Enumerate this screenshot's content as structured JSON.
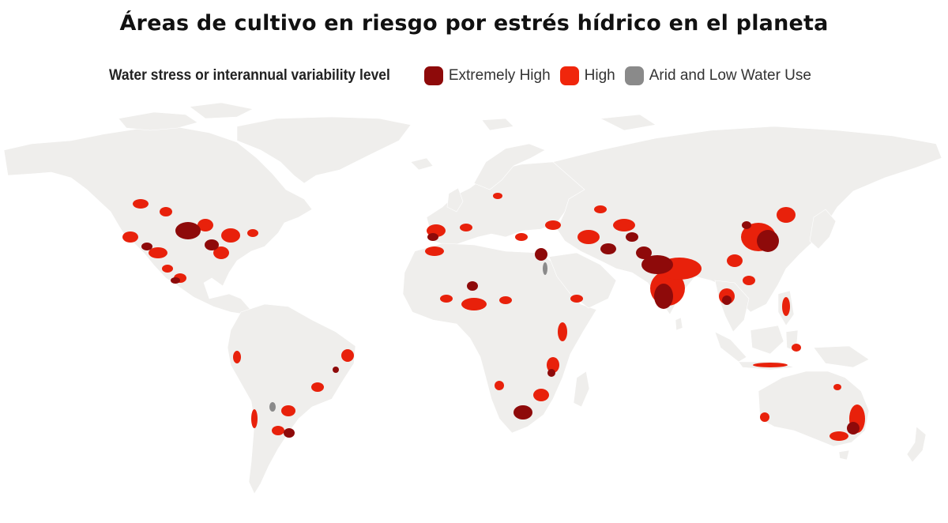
{
  "title": "Áreas de cultivo en riesgo por estrés hídrico en el planeta",
  "legend": {
    "title": "Water stress or interannual variability level",
    "items": [
      {
        "label": "Extremely High",
        "color": "#8e0a0a"
      },
      {
        "label": "High",
        "color": "#f0260c"
      },
      {
        "label": "Arid and Low Water Use",
        "color": "#8a8a8a"
      }
    ]
  },
  "colors": {
    "land": "#efeeec",
    "water": "#ffffff"
  },
  "regions_at_risk": [
    "western-north-america",
    "central-us-plains",
    "mexico",
    "andes",
    "eastern-brazil",
    "argentina",
    "iberia",
    "mediterranean",
    "nile-valley",
    "sahel",
    "east-africa",
    "southern-africa",
    "middle-east",
    "central-asia",
    "india",
    "north-china-plain",
    "indochina",
    "indonesia",
    "philippines",
    "eastern-australia",
    "southwest-australia"
  ]
}
